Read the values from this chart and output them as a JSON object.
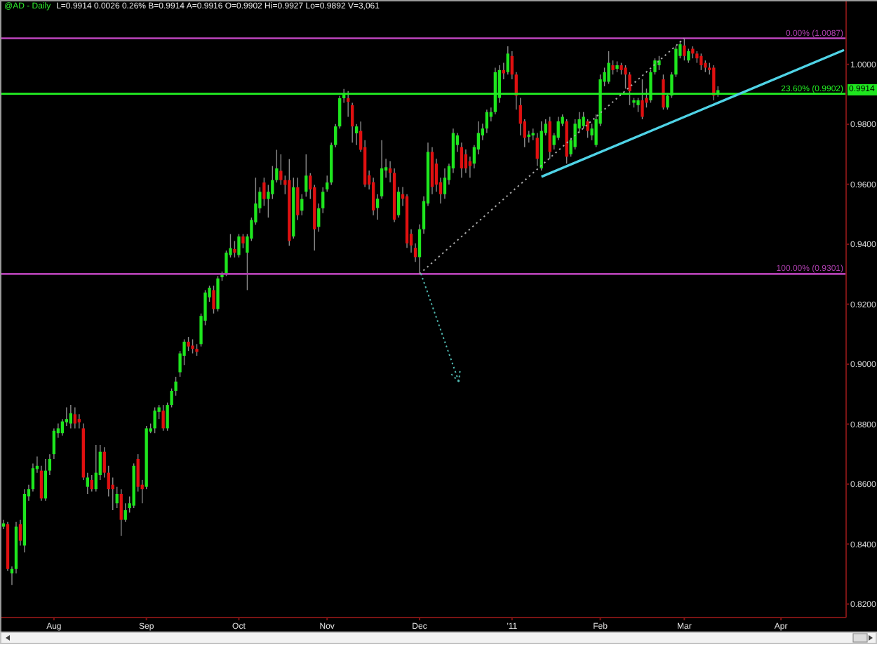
{
  "chart_data": {
    "type": "candlestick",
    "title": "@AD - Daily",
    "subtitle": "L=0.9914 0.0026 0.26% B=0.9914 A=0.9916 O=0.9902 Hi=0.9927 Lo=0.9892 V=3,061",
    "categories": [
      null,
      null,
      null,
      null,
      null,
      null,
      null,
      null,
      null,
      null,
      null,
      null,
      "Aug",
      null,
      null,
      null,
      null,
      null,
      null,
      null,
      null,
      null,
      null,
      null,
      null,
      null,
      null,
      null,
      null,
      null,
      null,
      null,
      null,
      null,
      "Sep",
      null,
      null,
      null,
      null,
      null,
      null,
      null,
      null,
      null,
      null,
      null,
      null,
      null,
      null,
      null,
      null,
      null,
      null,
      null,
      null,
      null,
      "Oct",
      null,
      null,
      null,
      null,
      null,
      null,
      null,
      null,
      null,
      null,
      null,
      null,
      null,
      null,
      null,
      null,
      null,
      null,
      null,
      null,
      "Nov",
      null,
      null,
      null,
      null,
      null,
      null,
      null,
      null,
      null,
      null,
      null,
      null,
      null,
      null,
      null,
      null,
      null,
      null,
      null,
      null,
      null,
      "Dec",
      null,
      null,
      null,
      null,
      null,
      null,
      null,
      null,
      null,
      null,
      null,
      null,
      null,
      null,
      null,
      null,
      null,
      null,
      null,
      null,
      null,
      "'11",
      null,
      null,
      null,
      null,
      null,
      null,
      null,
      null,
      null,
      null,
      null,
      null,
      null,
      null,
      null,
      null,
      null,
      null,
      null,
      null,
      "Feb",
      null,
      null,
      null,
      null,
      null,
      null,
      null,
      null,
      null,
      null,
      null,
      null,
      null,
      null,
      null,
      null,
      null,
      null,
      null,
      "Mar",
      null,
      null,
      null,
      null,
      null,
      null,
      null,
      null,
      null,
      null,
      null,
      null,
      null,
      null,
      null,
      null,
      null,
      null,
      null,
      null,
      null,
      null,
      "Apr",
      null,
      null,
      null,
      null,
      null,
      null,
      null,
      null,
      null,
      null,
      null,
      null,
      null,
      null,
      null
    ],
    "ohlc": [
      [
        0.8458,
        0.8481,
        0.845,
        0.8469
      ],
      [
        0.8466,
        0.8474,
        0.831,
        0.8317
      ],
      [
        0.8302,
        0.8325,
        0.8263,
        0.8317
      ],
      [
        0.8317,
        0.8474,
        0.8302,
        0.8458
      ],
      [
        0.8466,
        0.8481,
        0.8395,
        0.8411
      ],
      [
        0.8395,
        0.8583,
        0.8372,
        0.8567
      ],
      [
        0.8559,
        0.8598,
        0.8544,
        0.8583
      ],
      [
        0.8583,
        0.8669,
        0.8575,
        0.8653
      ],
      [
        0.865,
        0.8692,
        0.8638,
        0.8661
      ],
      [
        0.8645,
        0.8661,
        0.8544,
        0.8552
      ],
      [
        0.8552,
        0.8684,
        0.8544,
        0.8645
      ],
      [
        0.8645,
        0.87,
        0.863,
        0.8684
      ],
      [
        0.87,
        0.8786,
        0.8684,
        0.8778
      ],
      [
        0.877,
        0.8802,
        0.8755,
        0.8786
      ],
      [
        0.877,
        0.8817,
        0.8762,
        0.8809
      ],
      [
        0.8806,
        0.8856,
        0.8794,
        0.8817
      ],
      [
        0.8802,
        0.8864,
        0.8786,
        0.8836
      ],
      [
        0.8833,
        0.8856,
        0.8786,
        0.8802
      ],
      [
        0.8817,
        0.8833,
        0.8786,
        0.8806
      ],
      [
        0.8786,
        0.8802,
        0.8614,
        0.8622
      ],
      [
        0.8591,
        0.8638,
        0.8567,
        0.8622
      ],
      [
        0.8614,
        0.863,
        0.8575,
        0.8583
      ],
      [
        0.8583,
        0.8731,
        0.8575,
        0.8638
      ],
      [
        0.863,
        0.8731,
        0.8614,
        0.8708
      ],
      [
        0.8708,
        0.8723,
        0.8622,
        0.8638
      ],
      [
        0.8638,
        0.8661,
        0.8559,
        0.8583
      ],
      [
        0.8598,
        0.8622,
        0.8513,
        0.8583
      ],
      [
        0.8536,
        0.8591,
        0.852,
        0.8567
      ],
      [
        0.8567,
        0.8583,
        0.8427,
        0.8481
      ],
      [
        0.8481,
        0.8536,
        0.8474,
        0.8513
      ],
      [
        0.852,
        0.8559,
        0.8505,
        0.8536
      ],
      [
        0.8528,
        0.8669,
        0.852,
        0.8661
      ],
      [
        0.8684,
        0.87,
        0.8575,
        0.8591
      ],
      [
        0.8598,
        0.8614,
        0.8536,
        0.8583
      ],
      [
        0.8591,
        0.8794,
        0.8583,
        0.8786
      ],
      [
        0.8775,
        0.8802,
        0.877,
        0.8786
      ],
      [
        0.8786,
        0.8856,
        0.877,
        0.8845
      ],
      [
        0.8841,
        0.8864,
        0.8817,
        0.8856
      ],
      [
        0.8845,
        0.8864,
        0.8778,
        0.8786
      ],
      [
        0.8786,
        0.8872,
        0.8778,
        0.8864
      ],
      [
        0.8864,
        0.8919,
        0.8856,
        0.8911
      ],
      [
        0.8911,
        0.8958,
        0.8895,
        0.8942
      ],
      [
        0.8973,
        0.9044,
        0.8958,
        0.9036
      ],
      [
        0.9028,
        0.9083,
        0.8997,
        0.9075
      ],
      [
        0.9075,
        0.9091,
        0.9044,
        0.9059
      ],
      [
        0.9062,
        0.9083,
        0.9036,
        0.9051
      ],
      [
        0.9051,
        0.9067,
        0.9028,
        0.9041
      ],
      [
        0.9067,
        0.9169,
        0.9059,
        0.9161
      ],
      [
        0.9145,
        0.9247,
        0.913,
        0.9239
      ],
      [
        0.9223,
        0.9262,
        0.9208,
        0.9255
      ],
      [
        0.9247,
        0.9262,
        0.9169,
        0.9184
      ],
      [
        0.9184,
        0.9294,
        0.9176,
        0.9286
      ],
      [
        0.929,
        0.9309,
        0.9278,
        0.9301
      ],
      [
        0.9301,
        0.9379,
        0.9294,
        0.9372
      ],
      [
        0.9364,
        0.9434,
        0.9356,
        0.9387
      ],
      [
        0.9384,
        0.9411,
        0.9356,
        0.9372
      ],
      [
        0.9364,
        0.9434,
        0.9356,
        0.9426
      ],
      [
        0.9426,
        0.9434,
        0.9387,
        0.9403
      ],
      [
        0.9372,
        0.9434,
        0.9247,
        0.9426
      ],
      [
        0.9419,
        0.9489,
        0.9411,
        0.9481
      ],
      [
        0.9473,
        0.9622,
        0.9465,
        0.9536
      ],
      [
        0.952,
        0.959,
        0.9504,
        0.9575
      ],
      [
        0.9606,
        0.9622,
        0.9528,
        0.9551
      ],
      [
        0.9551,
        0.9598,
        0.9489,
        0.9575
      ],
      [
        0.9567,
        0.9661,
        0.9551,
        0.9614
      ],
      [
        0.9614,
        0.9715,
        0.9606,
        0.9653
      ],
      [
        0.9645,
        0.97,
        0.9598,
        0.9614
      ],
      [
        0.9614,
        0.9629,
        0.9567,
        0.9598
      ],
      [
        0.9614,
        0.9684,
        0.9395,
        0.9411
      ],
      [
        0.9426,
        0.9622,
        0.9419,
        0.959
      ],
      [
        0.959,
        0.9622,
        0.9481,
        0.9497
      ],
      [
        0.9512,
        0.9567,
        0.9497,
        0.9551
      ],
      [
        0.9575,
        0.97,
        0.9559,
        0.9629
      ],
      [
        0.9629,
        0.9637,
        0.9551,
        0.9583
      ],
      [
        0.959,
        0.9598,
        0.9379,
        0.945
      ],
      [
        0.9458,
        0.9536,
        0.9442,
        0.952
      ],
      [
        0.952,
        0.959,
        0.9504,
        0.9575
      ],
      [
        0.9583,
        0.9629,
        0.9575,
        0.9606
      ],
      [
        0.9606,
        0.9739,
        0.9598,
        0.9731
      ],
      [
        0.9731,
        0.9801,
        0.9723,
        0.9793
      ],
      [
        0.9793,
        0.9895,
        0.9786,
        0.9887
      ],
      [
        0.9887,
        0.9918,
        0.9872,
        0.9903
      ],
      [
        0.9887,
        0.9911,
        0.9825,
        0.9875
      ],
      [
        0.9864,
        0.9872,
        0.9739,
        0.9793
      ],
      [
        0.977,
        0.9801,
        0.9731,
        0.9793
      ],
      [
        0.9778,
        0.9809,
        0.9708,
        0.9715
      ],
      [
        0.9724,
        0.9747,
        0.9591,
        0.9599
      ],
      [
        0.963,
        0.9646,
        0.9583,
        0.9599
      ],
      [
        0.9607,
        0.9622,
        0.9497,
        0.9513
      ],
      [
        0.9521,
        0.9567,
        0.9482,
        0.9552
      ],
      [
        0.956,
        0.9747,
        0.9552,
        0.9653
      ],
      [
        0.9646,
        0.9685,
        0.9622,
        0.9657
      ],
      [
        0.9653,
        0.9677,
        0.9607,
        0.9638
      ],
      [
        0.9638,
        0.9653,
        0.9474,
        0.9482
      ],
      [
        0.9497,
        0.9591,
        0.9489,
        0.9575
      ],
      [
        0.9567,
        0.9591,
        0.9528,
        0.9552
      ],
      [
        0.956,
        0.9567,
        0.9388,
        0.9403
      ],
      [
        0.9435,
        0.945,
        0.9372,
        0.9396
      ],
      [
        0.9388,
        0.9403,
        0.9341,
        0.9357
      ],
      [
        0.9357,
        0.9466,
        0.9301,
        0.945
      ],
      [
        0.945,
        0.956,
        0.9435,
        0.9544
      ],
      [
        0.9536,
        0.9739,
        0.9528,
        0.9708
      ],
      [
        0.9708,
        0.9724,
        0.9567,
        0.9591
      ],
      [
        0.9669,
        0.9685,
        0.9575,
        0.9599
      ],
      [
        0.9607,
        0.9622,
        0.9536,
        0.9567
      ],
      [
        0.9567,
        0.9653,
        0.9552,
        0.9622
      ],
      [
        0.9614,
        0.9669,
        0.9599,
        0.9661
      ],
      [
        0.9653,
        0.9786,
        0.9638,
        0.9771
      ],
      [
        0.9731,
        0.9771,
        0.9708,
        0.9763
      ],
      [
        0.9724,
        0.9739,
        0.9622,
        0.9653
      ],
      [
        0.97,
        0.9716,
        0.9638,
        0.9653
      ],
      [
        0.9677,
        0.9692,
        0.9622,
        0.9661
      ],
      [
        0.9669,
        0.9731,
        0.9653,
        0.9724
      ],
      [
        0.9716,
        0.981,
        0.97,
        0.9771
      ],
      [
        0.9763,
        0.9802,
        0.9747,
        0.9786
      ],
      [
        0.9786,
        0.9849,
        0.9771,
        0.9841
      ],
      [
        0.9825,
        0.9856,
        0.981,
        0.9841
      ],
      [
        0.9841,
        0.9989,
        0.9833,
        0.9974
      ],
      [
        0.9888,
        0.9997,
        0.9872,
        0.9981
      ],
      [
        0.9981,
        1.0005,
        0.995,
        0.997
      ],
      [
        0.9974,
        1.006,
        0.9966,
        1.0036
      ],
      [
        1.0028,
        1.0044,
        0.995,
        0.9966
      ],
      [
        0.9966,
        0.9974,
        0.9849,
        0.9896
      ],
      [
        0.9864,
        0.9888,
        0.9763,
        0.9802
      ],
      [
        0.981,
        0.9817,
        0.9724,
        0.9755
      ],
      [
        0.9758,
        0.9778,
        0.9739,
        0.9766
      ],
      [
        0.9763,
        0.9786,
        0.9747,
        0.9771
      ],
      [
        0.9755,
        0.9771,
        0.9661,
        0.9685
      ],
      [
        0.9653,
        0.981,
        0.9646,
        0.9778
      ],
      [
        0.9771,
        0.9817,
        0.9763,
        0.9802
      ],
      [
        0.981,
        0.9825,
        0.9685,
        0.9708
      ],
      [
        0.9731,
        0.9771,
        0.9716,
        0.9763
      ],
      [
        0.9755,
        0.9825,
        0.9747,
        0.981
      ],
      [
        0.9802,
        0.9833,
        0.9794,
        0.9825
      ],
      [
        0.981,
        0.9817,
        0.9669,
        0.9692
      ],
      [
        0.97,
        0.9755,
        0.9692,
        0.9747
      ],
      [
        0.9724,
        0.9817,
        0.9716,
        0.9802
      ],
      [
        0.9786,
        0.9841,
        0.9771,
        0.9817
      ],
      [
        0.9794,
        0.9841,
        0.9786,
        0.9825
      ],
      [
        0.981,
        0.9817,
        0.9755,
        0.9778
      ],
      [
        0.9763,
        0.9802,
        0.9747,
        0.9786
      ],
      [
        0.9731,
        0.9833,
        0.9724,
        0.9817
      ],
      [
        0.9802,
        0.9966,
        0.9794,
        0.995
      ],
      [
        0.9942,
        0.9989,
        0.9927,
        0.9974
      ],
      [
        0.9942,
        1.0044,
        0.9935,
        1.0005
      ],
      [
        0.9997,
        1.0013,
        0.9966,
        0.9981
      ],
      [
        0.9985,
        1.001,
        0.9974,
        0.9997
      ],
      [
        0.9997,
        1.0005,
        0.9966,
        0.9981
      ],
      [
        0.9989,
        0.9997,
        0.9919,
        0.9966
      ],
      [
        0.9966,
        0.9974,
        0.9864,
        0.9911
      ],
      [
        0.9872,
        0.9888,
        0.9856,
        0.988
      ],
      [
        0.9864,
        0.9888,
        0.9841,
        0.988
      ],
      [
        0.988,
        0.995,
        0.9817,
        0.9825
      ],
      [
        0.9888,
        0.9919,
        0.9856,
        0.9872
      ],
      [
        0.988,
        0.9981,
        0.9872,
        0.9974
      ],
      [
        0.9974,
        1.002,
        0.9966,
        1.0013
      ],
      [
        0.9997,
        1.0028,
        0.9981,
        1.0013
      ],
      [
        0.995,
        0.9966,
        0.9849,
        0.9856
      ],
      [
        0.9856,
        0.9903,
        0.9849,
        0.9896
      ],
      [
        0.9896,
        0.9974,
        0.9888,
        0.9966
      ],
      [
        0.9966,
        1.006,
        0.9958,
        1.0052
      ],
      [
        1.0028,
        1.0078,
        1.002,
        1.0067
      ],
      [
        1.0063,
        1.0087,
        1.0013,
        1.0028
      ],
      [
        1.0013,
        1.0052,
        1.0005,
        1.0044
      ],
      [
        1.0052,
        1.006,
        1.002,
        1.0036
      ],
      [
        1.0036,
        1.0044,
        1.0005,
        1.002
      ],
      [
        1.0028,
        1.0036,
        0.9981,
        0.9997
      ],
      [
        1.0005,
        1.0013,
        0.9974,
        0.9989
      ],
      [
        0.9989,
        1.0005,
        0.9966,
        0.9981
      ],
      [
        0.9989,
        0.9997,
        0.988,
        0.9896
      ],
      [
        0.9902,
        0.9927,
        0.9892,
        0.9914
      ],
      null,
      null,
      null,
      null,
      null,
      null,
      null,
      null,
      null,
      null,
      null,
      null,
      null,
      null,
      null,
      null,
      null,
      null,
      null,
      null,
      null,
      null,
      null,
      null,
      null,
      null,
      null,
      null,
      null,
      null
    ],
    "colors": [
      "#1ee61e",
      "#e01010",
      "#1ee61e",
      "#1ee61e",
      "#e01010",
      "#1ee61e",
      "#1ee61e",
      "#1ee61e",
      "#1ee61e",
      "#e01010",
      "#1ee61e",
      "#1ee61e",
      "#1ee61e",
      "#1ee61e",
      "#1ee61e",
      "#1ee61e",
      "#1ee61e",
      "#e01010",
      "#e01010",
      "#e01010",
      "#1ee61e",
      "#e01010",
      "#1ee61e",
      "#1ee61e",
      "#e01010",
      "#e01010",
      "#e01010",
      "#1ee61e",
      "#e01010",
      "#1ee61e",
      "#1ee61e",
      "#1ee61e",
      "#e01010",
      "#e01010",
      "#1ee61e",
      "#1ee61e",
      "#1ee61e",
      "#1ee61e",
      "#e01010",
      "#1ee61e",
      "#1ee61e",
      "#1ee61e",
      "#1ee61e",
      "#1ee61e",
      "#e01010",
      "#e01010",
      "#e01010",
      "#1ee61e",
      "#1ee61e",
      "#1ee61e",
      "#e01010",
      "#1ee61e",
      "#1ee61e",
      "#1ee61e",
      "#1ee61e",
      "#e01010",
      "#1ee61e",
      "#e01010",
      "#1ee61e",
      "#1ee61e",
      "#1ee61e",
      "#1ee61e",
      "#e01010",
      "#1ee61e",
      "#1ee61e",
      "#1ee61e",
      "#e01010",
      "#e01010",
      "#e01010",
      "#1ee61e",
      "#e01010",
      "#1ee61e",
      "#1ee61e",
      "#e01010",
      "#e01010",
      "#1ee61e",
      "#1ee61e",
      "#1ee61e",
      "#1ee61e",
      "#1ee61e",
      "#1ee61e",
      "#1ee61e",
      "#e01010",
      "#e01010",
      "#1ee61e",
      "#e01010",
      "#e01010",
      "#e01010",
      "#e01010",
      "#1ee61e",
      "#1ee61e",
      "#1ee61e",
      "#e01010",
      "#e01010",
      "#1ee61e",
      "#e01010",
      "#e01010",
      "#e01010",
      "#e01010",
      "#1ee61e",
      "#1ee61e",
      "#1ee61e",
      "#e01010",
      "#e01010",
      "#e01010",
      "#1ee61e",
      "#1ee61e",
      "#1ee61e",
      "#1ee61e",
      "#e01010",
      "#e01010",
      "#e01010",
      "#1ee61e",
      "#1ee61e",
      "#1ee61e",
      "#1ee61e",
      "#1ee61e",
      "#1ee61e",
      "#1ee61e",
      "#e01010",
      "#1ee61e",
      "#e01010",
      "#e01010",
      "#e01010",
      "#e01010",
      "#1ee61e",
      "#1ee61e",
      "#e01010",
      "#1ee61e",
      "#1ee61e",
      "#e01010",
      "#1ee61e",
      "#1ee61e",
      "#1ee61e",
      "#e01010",
      "#1ee61e",
      "#1ee61e",
      "#1ee61e",
      "#1ee61e",
      "#e01010",
      "#1ee61e",
      "#1ee61e",
      "#1ee61e",
      "#1ee61e",
      "#1ee61e",
      "#e01010",
      "#1ee61e",
      "#e01010",
      "#e01010",
      "#e01010",
      "#1ee61e",
      "#1ee61e",
      "#e01010",
      "#e01010",
      "#1ee61e",
      "#1ee61e",
      "#1ee61e",
      "#e01010",
      "#1ee61e",
      "#1ee61e",
      "#1ee61e",
      "#1ee61e",
      "#e01010",
      "#1ee61e",
      "#e01010",
      "#e01010",
      "#e01010",
      "#e01010",
      "#e01010",
      "#e01010",
      "#1ee61e",
      null,
      null,
      null,
      null,
      null,
      null,
      null,
      null,
      null,
      null,
      null,
      null,
      null,
      null,
      null,
      null,
      null,
      null,
      null,
      null,
      null,
      null,
      null,
      null,
      null,
      null,
      null,
      null,
      null,
      null
    ],
    "series": [
      {
        "type": "line",
        "color": "#4fd3e6",
        "values": [
          null,
          null,
          null,
          null,
          null,
          null,
          null,
          null,
          null,
          null,
          null,
          null,
          null,
          null,
          null,
          null,
          null,
          null,
          null,
          null,
          null,
          null,
          null,
          null,
          null,
          null,
          null,
          null,
          null,
          null,
          null,
          null,
          null,
          null,
          null,
          null,
          null,
          null,
          null,
          null,
          null,
          null,
          null,
          null,
          null,
          null,
          null,
          null,
          null,
          null,
          null,
          null,
          null,
          null,
          null,
          null,
          null,
          null,
          null,
          null,
          null,
          null,
          null,
          null,
          null,
          null,
          null,
          null,
          null,
          null,
          null,
          null,
          null,
          null,
          null,
          null,
          null,
          null,
          null,
          null,
          null,
          null,
          null,
          null,
          null,
          null,
          null,
          null,
          null,
          null,
          null,
          null,
          null,
          null,
          null,
          null,
          null,
          null,
          null,
          null,
          null,
          null,
          null,
          null,
          null,
          null,
          null,
          null,
          null,
          null,
          null,
          null,
          null,
          null,
          null,
          null,
          null,
          null,
          null,
          null,
          null,
          null,
          null,
          null,
          null,
          null,
          null,
          null,
          0.9625,
          null,
          null,
          null,
          null,
          null,
          null,
          null,
          null,
          null,
          null,
          null,
          null,
          null,
          null,
          null,
          null,
          null,
          null,
          null,
          null,
          null,
          null,
          null,
          null,
          null,
          null,
          null,
          null,
          null,
          null,
          null,
          null,
          null,
          null,
          null,
          null,
          null,
          null,
          null,
          null,
          null,
          null,
          null,
          null,
          null,
          null,
          null,
          null,
          null,
          null,
          null,
          null,
          null,
          null,
          null,
          null,
          null,
          null,
          null,
          null,
          null,
          null,
          null,
          null,
          null,
          null,
          null,
          null,
          null,
          null,
          null,
          1.0048
        ]
      },
      {
        "type": "line",
        "color": "#a8a8a8",
        "line_style": "dotted",
        "values": [
          null,
          null,
          null,
          null,
          null,
          null,
          null,
          null,
          null,
          null,
          null,
          null,
          null,
          null,
          null,
          null,
          null,
          null,
          null,
          null,
          null,
          null,
          null,
          null,
          null,
          null,
          null,
          null,
          null,
          null,
          null,
          null,
          null,
          null,
          null,
          null,
          null,
          null,
          null,
          null,
          null,
          null,
          null,
          null,
          null,
          null,
          null,
          null,
          null,
          null,
          null,
          null,
          null,
          null,
          null,
          null,
          null,
          null,
          null,
          null,
          null,
          null,
          null,
          null,
          null,
          null,
          null,
          null,
          null,
          null,
          null,
          null,
          null,
          null,
          null,
          null,
          null,
          null,
          null,
          null,
          null,
          null,
          null,
          null,
          null,
          null,
          null,
          null,
          null,
          null,
          null,
          null,
          null,
          null,
          null,
          null,
          null,
          null,
          null,
          0.9301,
          null,
          null,
          null,
          null,
          null,
          null,
          null,
          null,
          null,
          null,
          null,
          null,
          null,
          null,
          null,
          null,
          null,
          null,
          null,
          null,
          null,
          null,
          null,
          null,
          null,
          null,
          null,
          null,
          null,
          null,
          null,
          null,
          null,
          null,
          null,
          null,
          null,
          null,
          null,
          null,
          null,
          null,
          null,
          null,
          null,
          null,
          null,
          null,
          null,
          null,
          null,
          null,
          null,
          null,
          null,
          null,
          null,
          null,
          null,
          null,
          null,
          null,
          1.0087,
          null,
          null,
          null,
          null,
          null,
          null,
          null,
          null,
          null,
          null,
          null,
          null,
          null,
          null,
          null,
          null,
          null,
          null,
          null,
          null,
          null,
          null,
          null,
          null,
          null,
          null,
          null,
          null,
          null,
          null,
          null,
          null,
          null,
          null,
          null,
          null,
          null,
          null
        ]
      }
    ],
    "ylim": [
      0.8155,
      1.021
    ],
    "yticks": [
      {
        "value": 0.82,
        "label": "0.8200"
      },
      {
        "value": 0.84,
        "label": "0.8400"
      },
      {
        "value": 0.86,
        "label": "0.8600"
      },
      {
        "value": 0.88,
        "label": "0.8800"
      },
      {
        "value": 0.9,
        "label": "0.9000"
      },
      {
        "value": 0.92,
        "label": "0.9200"
      },
      {
        "value": 0.94,
        "label": "0.9400"
      },
      {
        "value": 0.96,
        "label": "0.9600"
      },
      {
        "value": 0.98,
        "label": "0.9800"
      },
      {
        "value": 1.0,
        "label": "1.0000"
      }
    ],
    "ref_lines": [
      {
        "axis": "y",
        "value": 1.0087,
        "label": "0.00% (1.0087)",
        "color": "#b040b0"
      },
      {
        "axis": "y",
        "value": 0.9902,
        "label": "23.60% (0.9902)",
        "color": "#22ee22"
      },
      {
        "axis": "y",
        "value": 0.9301,
        "label": "100.00% (0.9301)",
        "color": "#b040b0"
      }
    ],
    "annotations": [
      {
        "text": "0.9914",
        "y": 0.9914
      }
    ]
  }
}
